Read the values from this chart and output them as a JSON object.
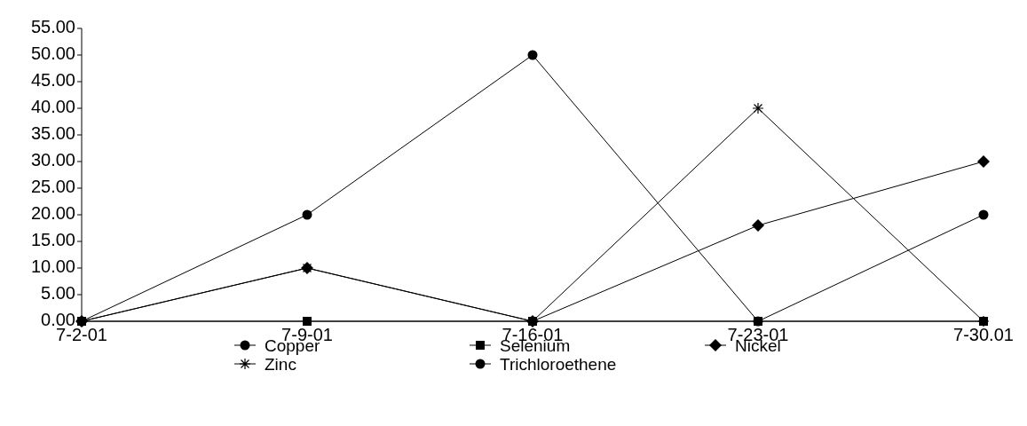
{
  "chart_data": {
    "type": "line",
    "categories": [
      "7-2-01",
      "7-9-01",
      "7-16-01",
      "7-23-01",
      "7-30.01"
    ],
    "ylim": [
      0,
      55
    ],
    "yticks": [
      {
        "value": 0,
        "label": "0.00"
      },
      {
        "value": 5,
        "label": "5.00"
      },
      {
        "value": 10,
        "label": "10.00"
      },
      {
        "value": 15,
        "label": "15.00"
      },
      {
        "value": 20,
        "label": "20.00"
      },
      {
        "value": 25,
        "label": "25.00"
      },
      {
        "value": 30,
        "label": "30.00"
      },
      {
        "value": 35,
        "label": "35.00"
      },
      {
        "value": 40,
        "label": "40.00"
      },
      {
        "value": 45,
        "label": "45.00"
      },
      {
        "value": 50,
        "label": "50.00"
      },
      {
        "value": 55,
        "label": "55.00"
      }
    ],
    "grid": false,
    "legend": "bottom",
    "line_style": "solid",
    "series": [
      {
        "name": "Copper",
        "color": "#000000",
        "marker": "circle",
        "values": [
          0,
          20,
          50,
          0,
          20
        ]
      },
      {
        "name": "Selenium",
        "color": "#000000",
        "marker": "square",
        "values": [
          0,
          0,
          0,
          0,
          0
        ]
      },
      {
        "name": "Nickel",
        "color": "#000000",
        "marker": "diamond",
        "values": [
          0,
          10,
          0,
          18,
          30
        ]
      },
      {
        "name": "Zinc",
        "color": "#000000",
        "marker": "cross",
        "values": [
          0,
          10,
          0,
          40,
          0
        ]
      },
      {
        "name": "Trichloroethene",
        "color": "#000000",
        "marker": "circle",
        "values": [
          null,
          null,
          null,
          null,
          null
        ]
      }
    ]
  }
}
